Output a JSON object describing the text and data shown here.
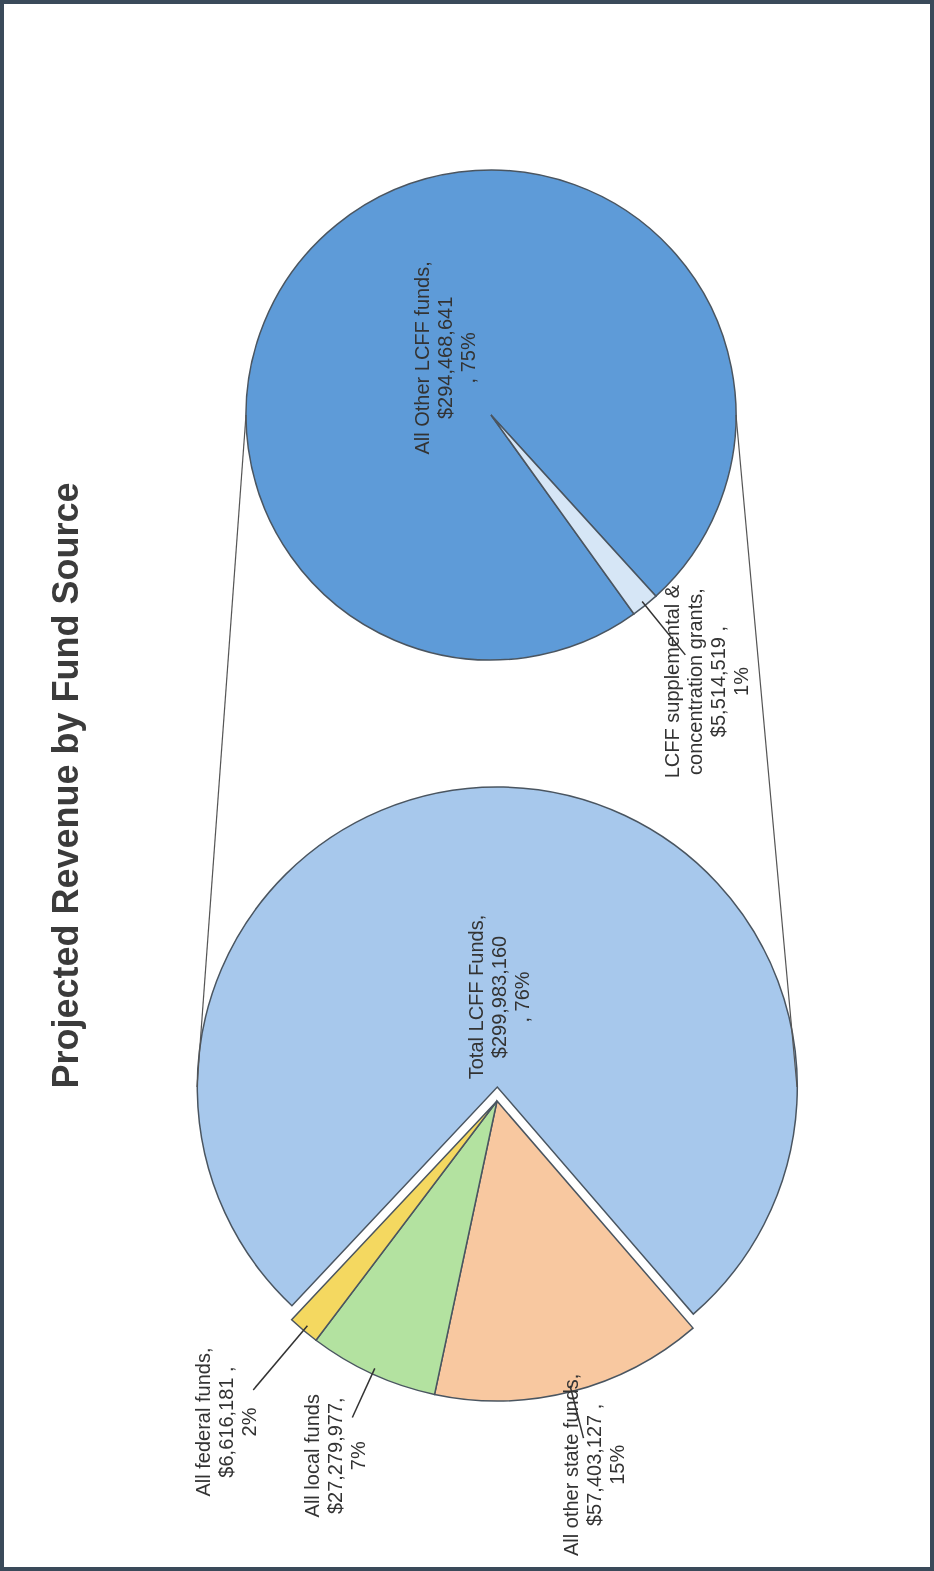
{
  "chart_data": [
    {
      "type": "pie",
      "title": "Projected Revenue by Fund Source",
      "categories": [
        "Total LCFF Funds",
        "All other state funds",
        "All local funds",
        "All federal funds"
      ],
      "values": [
        299983160,
        57403127,
        27279977,
        6616181
      ],
      "colors": [
        "#a7c8ec",
        "#f8c8a0",
        "#b3e2a0",
        "#f4d860"
      ],
      "value_labels": [
        ", $299,983,160 , 76%",
        ", $57,403,127 , 15%",
        "$27,279,977, 7%",
        ", $6,616,181 , 2%"
      ]
    },
    {
      "type": "pie",
      "categories": [
        "All Other LCFF funds",
        "LCFF supplemental & concentration grants"
      ],
      "values": [
        294468641,
        5514519
      ],
      "colors": [
        "#5e9bd8",
        "#d6e6f6"
      ],
      "value_labels": [
        ", $294,468,641 , 75%",
        ", $5,514,519 , 1%"
      ]
    }
  ]
}
